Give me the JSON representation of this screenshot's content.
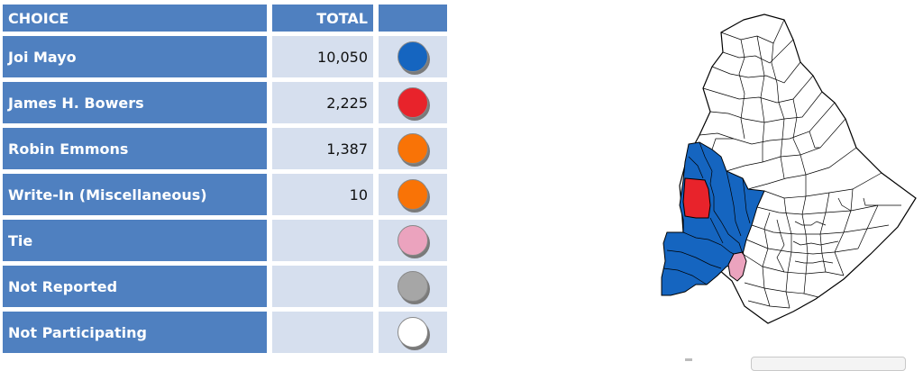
{
  "table": {
    "header": {
      "choice": "CHOICE",
      "total": "TOTAL"
    },
    "rows": [
      {
        "name": "Joi Mayo",
        "total": "10,050",
        "color": "#1565c0"
      },
      {
        "name": "James H. Bowers",
        "total": "2,225",
        "color": "#e8232b"
      },
      {
        "name": "Robin Emmons",
        "total": "1,387",
        "color": "#f97306"
      },
      {
        "name": "Write-In (Miscellaneous)",
        "total": "10",
        "color": "#f97306"
      },
      {
        "name": "Tie",
        "total": "",
        "color": "#eba3be"
      },
      {
        "name": "Not Reported",
        "total": "",
        "color": "#a6a6a6"
      },
      {
        "name": "Not Participating",
        "total": "",
        "color": "#ffffff"
      }
    ]
  },
  "map": {
    "region_colors": {
      "winner_joi_mayo": "#1565c0",
      "winner_james_bowers": "#e8232b",
      "tie": "#eba3be",
      "not_participating": "#ffffff",
      "border": "#000000"
    }
  }
}
